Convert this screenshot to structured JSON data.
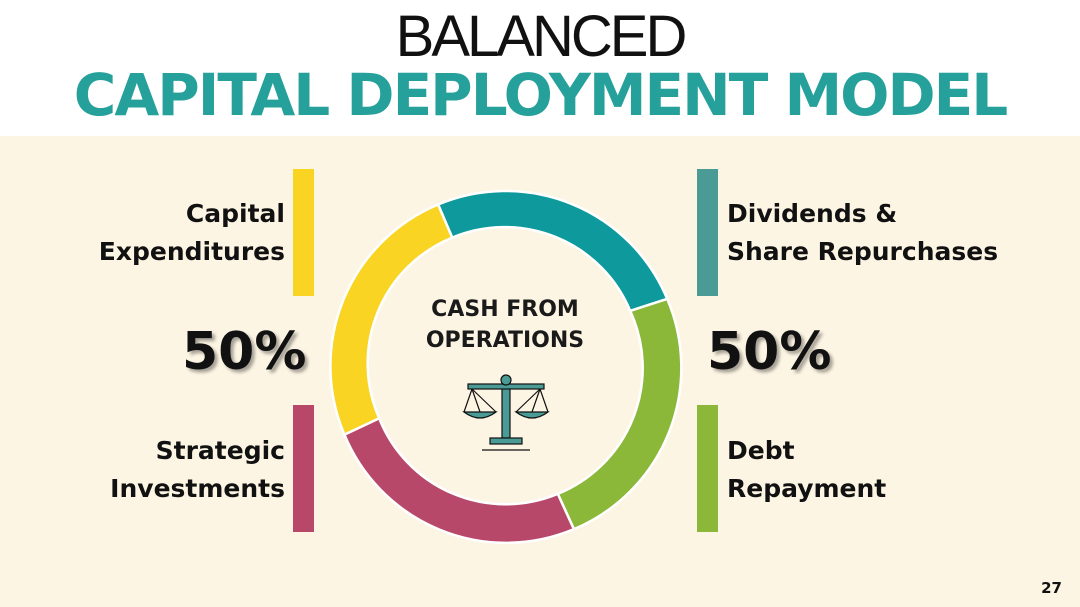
{
  "header": {
    "title_top": "BALANCED",
    "title_main": "CAPITAL DEPLOYMENT MODEL"
  },
  "center": {
    "line1": "CASH FROM",
    "line2": "OPERATIONS",
    "icon": "balance-scale-icon"
  },
  "left": {
    "top_label_line1": "Capital",
    "top_label_line2": "Expenditures",
    "percent": "50%",
    "bottom_label_line1": "Strategic",
    "bottom_label_line2": "Investments"
  },
  "right": {
    "top_label_line1": "Dividends &",
    "top_label_line2": "Share Repurchases",
    "percent": "50%",
    "bottom_label_line1": "Debt",
    "bottom_label_line2": "Repayment"
  },
  "page_number": "27",
  "colors": {
    "teal_title": "#25a09a",
    "teal": "#0e9a9c",
    "teal_muted": "#4a9b95",
    "green": "#8cb83a",
    "crimson": "#b8486a",
    "yellow": "#f9d423",
    "panel_bg": "#fdf5e4"
  }
}
